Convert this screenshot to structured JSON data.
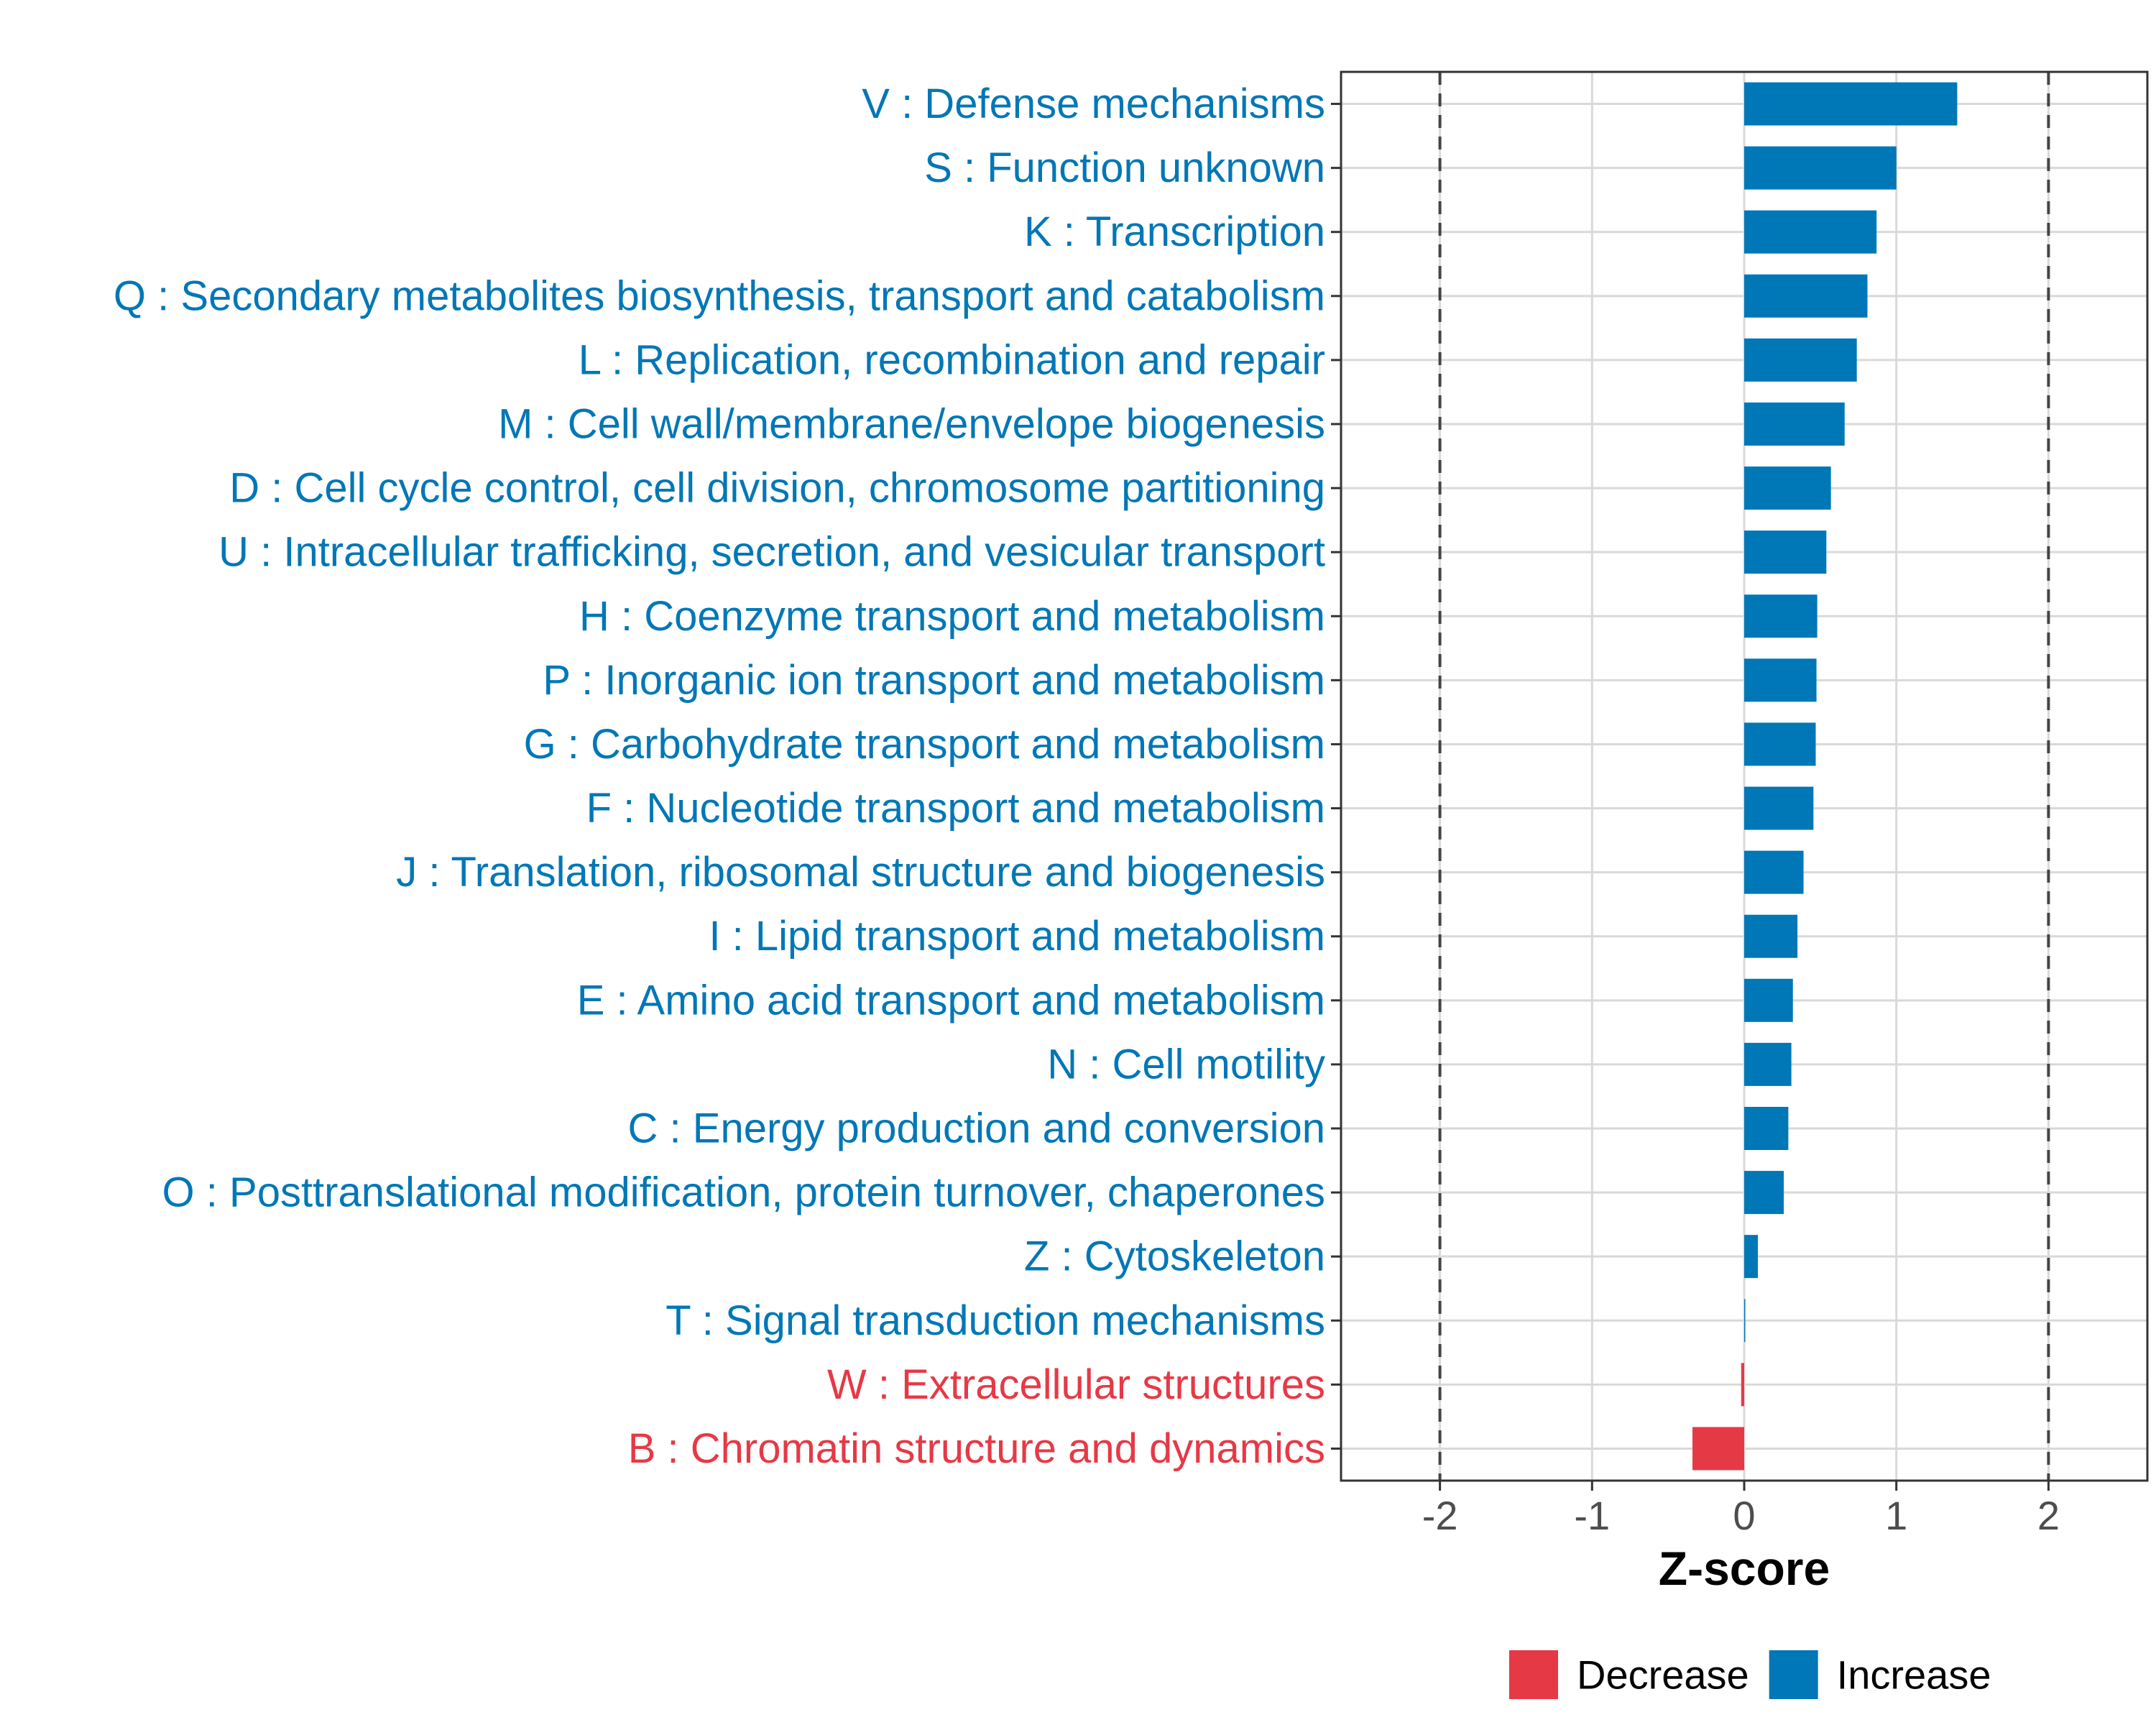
{
  "chart_data": {
    "type": "bar",
    "orientation": "horizontal",
    "title": "",
    "xlabel": "Z-score",
    "ylabel": "",
    "xlim": [
      -2.65,
      2.65
    ],
    "xticks": [
      -2,
      -1,
      0,
      1,
      2
    ],
    "xtick_labels": [
      "-2",
      "-1",
      "0",
      "1",
      "2"
    ],
    "reference_lines": [
      -2,
      2
    ],
    "grid": true,
    "legend_position": "bottom",
    "legend": [
      {
        "name": "Decrease",
        "color": "#e63946"
      },
      {
        "name": "Increase",
        "color": "#0077b6"
      }
    ],
    "categories": [
      "V : Defense mechanisms",
      "S : Function unknown",
      "K : Transcription",
      "Q : Secondary metabolites biosynthesis, transport and catabolism",
      "L : Replication, recombination and repair",
      "M : Cell wall/membrane/envelope biogenesis",
      "D : Cell cycle control, cell division, chromosome partitioning",
      "U : Intracellular trafficking, secretion, and vesicular transport",
      "H : Coenzyme transport and metabolism",
      "P : Inorganic ion transport and metabolism",
      "G : Carbohydrate transport and metabolism",
      "F : Nucleotide transport and metabolism",
      "J : Translation, ribosomal structure and biogenesis",
      "I : Lipid transport and metabolism",
      "E : Amino acid transport and metabolism",
      "N : Cell motility",
      "C : Energy production and conversion",
      "O : Posttranslational modification, protein turnover, chaperones",
      "Z : Cytoskeleton",
      "T : Signal transduction mechanisms",
      "W : Extracellular structures",
      "B : Chromatin structure and dynamics"
    ],
    "values": [
      1.4,
      1.0,
      0.87,
      0.81,
      0.74,
      0.66,
      0.57,
      0.54,
      0.48,
      0.475,
      0.47,
      0.455,
      0.39,
      0.35,
      0.32,
      0.31,
      0.29,
      0.26,
      0.09,
      0.005,
      -0.02,
      -0.34
    ],
    "groups": [
      "Increase",
      "Increase",
      "Increase",
      "Increase",
      "Increase",
      "Increase",
      "Increase",
      "Increase",
      "Increase",
      "Increase",
      "Increase",
      "Increase",
      "Increase",
      "Increase",
      "Increase",
      "Increase",
      "Increase",
      "Increase",
      "Increase",
      "Increase",
      "Decrease",
      "Decrease"
    ]
  }
}
